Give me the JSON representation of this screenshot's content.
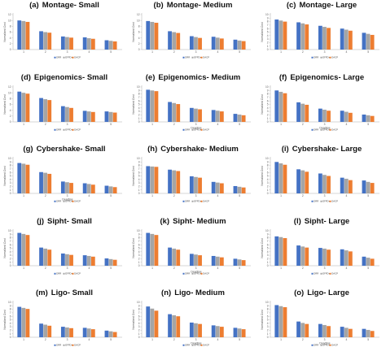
{
  "legend": [
    "DRR",
    "EFFD+",
    "DACP"
  ],
  "colors": [
    "#4472C4",
    "#A5A5A5",
    "#ED7D31"
  ],
  "chart_data": [
    {
      "type": "bar",
      "label": "(a)",
      "title": "Montage- Small",
      "categories": [
        "1",
        "2",
        "3",
        "4",
        "5"
      ],
      "ylabel": "Normalized Cost",
      "xlabel": "",
      "ylim": [
        0,
        12
      ],
      "yticks": [
        0,
        2,
        4,
        6,
        8,
        10,
        12
      ],
      "series": [
        {
          "name": "DRR",
          "values": [
            10,
            6.3,
            4.5,
            4.2,
            3.2
          ]
        },
        {
          "name": "EFFD+",
          "values": [
            9.8,
            6.0,
            4.3,
            3.9,
            3.0
          ]
        },
        {
          "name": "DACP",
          "values": [
            9.5,
            5.8,
            4.1,
            3.7,
            2.8
          ]
        }
      ]
    },
    {
      "type": "bar",
      "label": "(b)",
      "title": "Montage- Medium",
      "categories": [
        "1",
        "2",
        "3",
        "4",
        "5"
      ],
      "ylabel": "Normalized Cost",
      "xlabel": "",
      "ylim": [
        0,
        12
      ],
      "yticks": [
        0,
        2,
        4,
        6,
        8,
        10,
        12
      ],
      "series": [
        {
          "name": "DRR",
          "values": [
            9.8,
            6.3,
            4.6,
            4.4,
            3.4
          ]
        },
        {
          "name": "EFFD+",
          "values": [
            9.5,
            6.0,
            4.3,
            4.1,
            3.1
          ]
        },
        {
          "name": "DACP",
          "values": [
            9.2,
            5.7,
            4.0,
            3.8,
            2.9
          ]
        }
      ]
    },
    {
      "type": "bar",
      "label": "(c)",
      "title": "Montage- Large",
      "categories": [
        "1",
        "2",
        "3",
        "4",
        "5"
      ],
      "ylabel": "Normalized Cost",
      "xlabel": "",
      "ylim": [
        0,
        10
      ],
      "yticks": [
        0,
        1,
        2,
        3,
        4,
        5,
        6,
        7,
        8,
        9,
        10
      ],
      "series": [
        {
          "name": "DRR",
          "values": [
            8.6,
            7.8,
            6.8,
            6.0,
            4.8
          ]
        },
        {
          "name": "EFFD+",
          "values": [
            8.3,
            7.5,
            6.5,
            5.7,
            4.5
          ]
        },
        {
          "name": "DACP",
          "values": [
            8.0,
            7.2,
            6.2,
            5.4,
            4.2
          ]
        }
      ]
    },
    {
      "type": "bar",
      "label": "(d)",
      "title": "Epigenomics- Small",
      "categories": [
        "1",
        "2",
        "3",
        "4",
        "5"
      ],
      "ylabel": "Normalized Cost",
      "xlabel": "",
      "ylim": [
        0,
        12
      ],
      "yticks": [
        0,
        2,
        4,
        6,
        8,
        10,
        12
      ],
      "series": [
        {
          "name": "DRR",
          "values": [
            10.4,
            8.2,
            5.4,
            3.8,
            3.6
          ]
        },
        {
          "name": "EFFD+",
          "values": [
            10.0,
            7.8,
            5.1,
            3.6,
            3.4
          ]
        },
        {
          "name": "DACP",
          "values": [
            9.7,
            7.5,
            4.8,
            3.4,
            3.2
          ]
        }
      ]
    },
    {
      "type": "bar",
      "label": "(e)",
      "title": "Epigenomics- Medium",
      "categories": [
        "1",
        "2",
        "3",
        "4",
        "5"
      ],
      "ylabel": "Normalized Cost",
      "xlabel": "Deadline",
      "ylim": [
        0,
        10
      ],
      "yticks": [
        0,
        1,
        2,
        3,
        4,
        5,
        6,
        7,
        8,
        9,
        10
      ],
      "series": [
        {
          "name": "DRR",
          "values": [
            9.2,
            5.7,
            4.0,
            3.4,
            2.3
          ]
        },
        {
          "name": "EFFD+",
          "values": [
            9.0,
            5.4,
            3.8,
            3.2,
            2.1
          ]
        },
        {
          "name": "DACP",
          "values": [
            8.8,
            5.1,
            3.6,
            3.0,
            1.9
          ]
        }
      ]
    },
    {
      "type": "bar",
      "label": "(f)",
      "title": "Epigenomics- Large",
      "categories": [
        "1",
        "2",
        "3",
        "4",
        "5"
      ],
      "ylabel": "Normalized Cost",
      "xlabel": "Deadline",
      "ylim": [
        0,
        10
      ],
      "yticks": [
        0,
        1,
        2,
        3,
        4,
        5,
        6,
        7,
        8,
        9,
        10
      ],
      "series": [
        {
          "name": "DRR",
          "values": [
            9.0,
            5.6,
            3.8,
            3.2,
            2.1
          ]
        },
        {
          "name": "EFFD+",
          "values": [
            8.6,
            5.2,
            3.5,
            2.9,
            1.9
          ]
        },
        {
          "name": "DACP",
          "values": [
            8.2,
            4.9,
            3.2,
            2.6,
            1.7
          ]
        }
      ]
    },
    {
      "type": "bar",
      "label": "(g)",
      "title": "Cybershake- Small",
      "categories": [
        "1",
        "2",
        "3",
        "4",
        "5"
      ],
      "ylabel": "Normalized Cost",
      "xlabel": "Deadline",
      "ylim": [
        0,
        10
      ],
      "yticks": [
        0,
        1,
        2,
        3,
        4,
        5,
        6,
        7,
        8,
        9,
        10
      ],
      "series": [
        {
          "name": "DRR",
          "values": [
            8.7,
            6.1,
            3.4,
            2.9,
            2.2
          ]
        },
        {
          "name": "EFFD+",
          "values": [
            8.5,
            5.9,
            3.2,
            2.7,
            2.0
          ]
        },
        {
          "name": "DACP",
          "values": [
            8.2,
            5.6,
            3.0,
            2.5,
            1.8
          ]
        }
      ]
    },
    {
      "type": "bar",
      "label": "(h)",
      "title": "Cybershake- Medium",
      "categories": [
        "1",
        "2",
        "3",
        "4",
        "5"
      ],
      "ylabel": "Normalized Cost",
      "xlabel": "",
      "ylim": [
        0,
        10
      ],
      "yticks": [
        0,
        1,
        2,
        3,
        4,
        5,
        6,
        7,
        8,
        9,
        10
      ],
      "series": [
        {
          "name": "DRR",
          "values": [
            7.8,
            6.8,
            4.9,
            3.3,
            2.1
          ]
        },
        {
          "name": "EFFD+",
          "values": [
            7.7,
            6.6,
            4.7,
            3.1,
            1.9
          ]
        },
        {
          "name": "DACP",
          "values": [
            7.6,
            6.4,
            4.5,
            2.9,
            1.7
          ]
        }
      ]
    },
    {
      "type": "bar",
      "label": "(i)",
      "title": "Cybershake- Large",
      "categories": [
        "1",
        "2",
        "3",
        "4",
        "5"
      ],
      "ylabel": "Normalized Cost",
      "xlabel": "",
      "ylim": [
        0,
        10
      ],
      "yticks": [
        0,
        1,
        2,
        3,
        4,
        5,
        6,
        7,
        8,
        9,
        10
      ],
      "series": [
        {
          "name": "DRR",
          "values": [
            9.0,
            6.9,
            5.7,
            4.5,
            3.7
          ]
        },
        {
          "name": "EFFD+",
          "values": [
            8.6,
            6.6,
            5.3,
            4.2,
            3.3
          ]
        },
        {
          "name": "DACP",
          "values": [
            8.2,
            6.2,
            5.0,
            3.8,
            3.0
          ]
        }
      ]
    },
    {
      "type": "bar",
      "label": "(j)",
      "title": "Sipht- Small",
      "categories": [
        "1",
        "2",
        "3",
        "4",
        "5"
      ],
      "ylabel": "Normalized Cost",
      "xlabel": "",
      "ylim": [
        0,
        10
      ],
      "yticks": [
        0,
        1,
        2,
        3,
        4,
        5,
        6,
        7,
        8,
        9,
        10
      ],
      "series": [
        {
          "name": "DRR",
          "values": [
            9.4,
            5.2,
            3.5,
            3.0,
            2.1
          ]
        },
        {
          "name": "EFFD+",
          "values": [
            9.1,
            4.9,
            3.3,
            2.8,
            1.9
          ]
        },
        {
          "name": "DACP",
          "values": [
            8.8,
            4.6,
            3.1,
            2.6,
            1.7
          ]
        }
      ]
    },
    {
      "type": "bar",
      "label": "(k)",
      "title": "Sipht- Medium",
      "categories": [
        "1",
        "2",
        "3",
        "4",
        "5"
      ],
      "ylabel": "Normalized Cost",
      "xlabel": "Deadline",
      "ylim": [
        0,
        10
      ],
      "yticks": [
        0,
        1,
        2,
        3,
        4,
        5,
        6,
        7,
        8,
        9,
        10
      ],
      "series": [
        {
          "name": "DRR",
          "values": [
            9.4,
            5.2,
            3.4,
            2.8,
            2.0
          ]
        },
        {
          "name": "EFFD+",
          "values": [
            9.1,
            4.9,
            3.2,
            2.6,
            1.8
          ]
        },
        {
          "name": "DACP",
          "values": [
            8.8,
            4.6,
            3.0,
            2.4,
            1.6
          ]
        }
      ]
    },
    {
      "type": "bar",
      "label": "(l)",
      "title": "Sipht- Large",
      "categories": [
        "1",
        "2",
        "3",
        "4",
        "5"
      ],
      "ylabel": "Normalized Cost",
      "xlabel": "",
      "ylim": [
        0,
        10
      ],
      "yticks": [
        0,
        1,
        2,
        3,
        4,
        5,
        6,
        7,
        8,
        9,
        10
      ],
      "series": [
        {
          "name": "DRR",
          "values": [
            8.4,
            5.8,
            5.1,
            4.7,
            2.6
          ]
        },
        {
          "name": "EFFD+",
          "values": [
            8.2,
            5.5,
            4.9,
            4.4,
            2.3
          ]
        },
        {
          "name": "DACP",
          "values": [
            7.9,
            5.2,
            4.6,
            4.1,
            2.0
          ]
        }
      ]
    },
    {
      "type": "bar",
      "label": "(m)",
      "title": "Ligo- Small",
      "categories": [
        "1",
        "2",
        "3",
        "4",
        "5"
      ],
      "ylabel": "Normalized Cost",
      "xlabel": "",
      "ylim": [
        0,
        10
      ],
      "yticks": [
        0,
        1,
        2,
        3,
        4,
        5,
        6,
        7,
        8,
        9,
        10
      ],
      "series": [
        {
          "name": "DRR",
          "values": [
            8.7,
            3.9,
            3.0,
            2.7,
            1.9
          ]
        },
        {
          "name": "EFFD+",
          "values": [
            8.4,
            3.6,
            2.8,
            2.5,
            1.7
          ]
        },
        {
          "name": "DACP",
          "values": [
            8.1,
            3.3,
            2.6,
            2.3,
            1.5
          ]
        }
      ]
    },
    {
      "type": "bar",
      "label": "(n)",
      "title": "Ligo- Medium",
      "categories": [
        "1",
        "2",
        "3",
        "4",
        "5"
      ],
      "ylabel": "Normalized Cost",
      "xlabel": "Deadline",
      "ylim": [
        0,
        10
      ],
      "yticks": [
        0,
        1,
        2,
        3,
        4,
        5,
        6,
        7,
        8,
        9,
        10
      ],
      "series": [
        {
          "name": "DRR",
          "values": [
            8.8,
            6.6,
            4.2,
            3.4,
            2.7
          ]
        },
        {
          "name": "EFFD+",
          "values": [
            8.2,
            6.3,
            4.0,
            3.2,
            2.5
          ]
        },
        {
          "name": "DACP",
          "values": [
            7.6,
            6.0,
            3.8,
            3.0,
            2.3
          ]
        }
      ]
    },
    {
      "type": "bar",
      "label": "(o)",
      "title": "Ligo- Large",
      "categories": [
        "1",
        "2",
        "3",
        "4",
        "5"
      ],
      "ylabel": "Normalized Cost",
      "xlabel": "Deadline",
      "ylim": [
        0,
        10
      ],
      "yticks": [
        0,
        1,
        2,
        3,
        4,
        5,
        6,
        7,
        8,
        9,
        10
      ],
      "series": [
        {
          "name": "DRR",
          "values": [
            9.2,
            4.5,
            3.8,
            3.0,
            2.4
          ]
        },
        {
          "name": "EFFD+",
          "values": [
            8.9,
            4.1,
            3.5,
            2.7,
            2.1
          ]
        },
        {
          "name": "DACP",
          "values": [
            8.6,
            3.8,
            3.2,
            2.4,
            1.8
          ]
        }
      ]
    }
  ]
}
